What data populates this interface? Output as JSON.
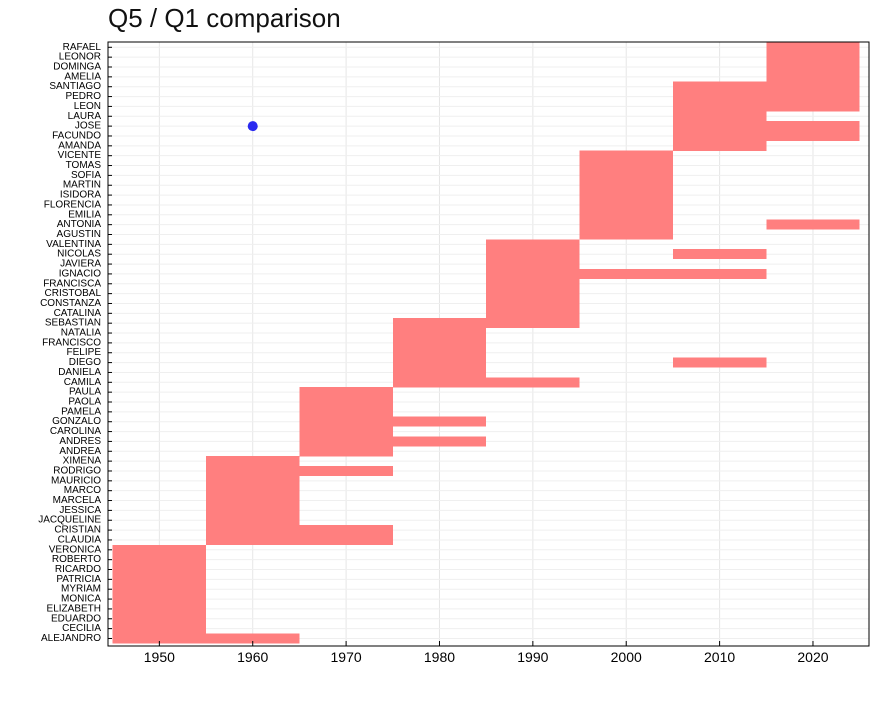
{
  "chart_data": {
    "type": "bar",
    "subtype": "timeline-heatmap",
    "title": "Q5 / Q1 comparison",
    "xlabel": "",
    "ylabel": "",
    "xlim": [
      1944.5,
      2026
    ],
    "xticks": [
      1950,
      1960,
      1970,
      1980,
      1990,
      2000,
      2010,
      2020
    ],
    "grid": true,
    "bar_color": "#ff7f7f",
    "point_color": "#2a2af0",
    "categories": [
      "ALEJANDRO",
      "CECILIA",
      "EDUARDO",
      "ELIZABETH",
      "MONICA",
      "MYRIAM",
      "PATRICIA",
      "RICARDO",
      "ROBERTO",
      "VERONICA",
      "CLAUDIA",
      "CRISTIAN",
      "JACQUELINE",
      "JESSICA",
      "MARCELA",
      "MARCO",
      "MAURICIO",
      "RODRIGO",
      "XIMENA",
      "ANDREA",
      "ANDRES",
      "CAROLINA",
      "GONZALO",
      "PAMELA",
      "PAOLA",
      "PAULA",
      "CAMILA",
      "DANIELA",
      "DIEGO",
      "FELIPE",
      "FRANCISCO",
      "NATALIA",
      "SEBASTIAN",
      "CATALINA",
      "CONSTANZA",
      "CRISTOBAL",
      "FRANCISCA",
      "IGNACIO",
      "JAVIERA",
      "NICOLAS",
      "VALENTINA",
      "AGUSTIN",
      "ANTONIA",
      "EMILIA",
      "FLORENCIA",
      "ISIDORA",
      "MARTIN",
      "SOFIA",
      "TOMAS",
      "VICENTE",
      "AMANDA",
      "FACUNDO",
      "JOSE",
      "LAURA",
      "LEON",
      "PEDRO",
      "SANTIAGO",
      "AMELIA",
      "DOMINGA",
      "LEONOR",
      "RAFAEL"
    ],
    "bars": [
      {
        "name": "ALEJANDRO",
        "ranges": [
          [
            1945,
            1965
          ]
        ]
      },
      {
        "name": "CECILIA",
        "ranges": [
          [
            1945,
            1955
          ]
        ]
      },
      {
        "name": "EDUARDO",
        "ranges": [
          [
            1945,
            1955
          ]
        ]
      },
      {
        "name": "ELIZABETH",
        "ranges": [
          [
            1945,
            1955
          ]
        ]
      },
      {
        "name": "MONICA",
        "ranges": [
          [
            1945,
            1955
          ]
        ]
      },
      {
        "name": "MYRIAM",
        "ranges": [
          [
            1945,
            1955
          ]
        ]
      },
      {
        "name": "PATRICIA",
        "ranges": [
          [
            1945,
            1955
          ]
        ]
      },
      {
        "name": "RICARDO",
        "ranges": [
          [
            1945,
            1955
          ]
        ]
      },
      {
        "name": "ROBERTO",
        "ranges": [
          [
            1945,
            1955
          ]
        ]
      },
      {
        "name": "VERONICA",
        "ranges": [
          [
            1945,
            1955
          ]
        ]
      },
      {
        "name": "CLAUDIA",
        "ranges": [
          [
            1955,
            1975
          ]
        ]
      },
      {
        "name": "CRISTIAN",
        "ranges": [
          [
            1955,
            1975
          ]
        ]
      },
      {
        "name": "JACQUELINE",
        "ranges": [
          [
            1955,
            1965
          ]
        ]
      },
      {
        "name": "JESSICA",
        "ranges": [
          [
            1955,
            1965
          ]
        ]
      },
      {
        "name": "MARCELA",
        "ranges": [
          [
            1955,
            1965
          ]
        ]
      },
      {
        "name": "MARCO",
        "ranges": [
          [
            1955,
            1965
          ]
        ]
      },
      {
        "name": "MAURICIO",
        "ranges": [
          [
            1955,
            1965
          ]
        ]
      },
      {
        "name": "RODRIGO",
        "ranges": [
          [
            1955,
            1975
          ]
        ]
      },
      {
        "name": "XIMENA",
        "ranges": [
          [
            1955,
            1965
          ]
        ]
      },
      {
        "name": "ANDREA",
        "ranges": [
          [
            1965,
            1975
          ]
        ]
      },
      {
        "name": "ANDRES",
        "ranges": [
          [
            1965,
            1985
          ]
        ]
      },
      {
        "name": "CAROLINA",
        "ranges": [
          [
            1965,
            1975
          ]
        ]
      },
      {
        "name": "GONZALO",
        "ranges": [
          [
            1965,
            1985
          ]
        ]
      },
      {
        "name": "PAMELA",
        "ranges": [
          [
            1965,
            1975
          ]
        ]
      },
      {
        "name": "PAOLA",
        "ranges": [
          [
            1965,
            1975
          ]
        ]
      },
      {
        "name": "PAULA",
        "ranges": [
          [
            1965,
            1975
          ]
        ]
      },
      {
        "name": "CAMILA",
        "ranges": [
          [
            1975,
            1995
          ]
        ]
      },
      {
        "name": "DANIELA",
        "ranges": [
          [
            1975,
            1985
          ]
        ]
      },
      {
        "name": "DIEGO",
        "ranges": [
          [
            1975,
            1985
          ],
          [
            2005,
            2015
          ]
        ]
      },
      {
        "name": "FELIPE",
        "ranges": [
          [
            1975,
            1985
          ]
        ]
      },
      {
        "name": "FRANCISCO",
        "ranges": [
          [
            1975,
            1985
          ]
        ]
      },
      {
        "name": "NATALIA",
        "ranges": [
          [
            1975,
            1985
          ]
        ]
      },
      {
        "name": "SEBASTIAN",
        "ranges": [
          [
            1975,
            1995
          ]
        ]
      },
      {
        "name": "CATALINA",
        "ranges": [
          [
            1985,
            1995
          ]
        ]
      },
      {
        "name": "CONSTANZA",
        "ranges": [
          [
            1985,
            1995
          ]
        ]
      },
      {
        "name": "CRISTOBAL",
        "ranges": [
          [
            1985,
            1995
          ]
        ]
      },
      {
        "name": "FRANCISCA",
        "ranges": [
          [
            1985,
            1995
          ]
        ]
      },
      {
        "name": "IGNACIO",
        "ranges": [
          [
            1985,
            2015
          ]
        ]
      },
      {
        "name": "JAVIERA",
        "ranges": [
          [
            1985,
            1995
          ]
        ]
      },
      {
        "name": "NICOLAS",
        "ranges": [
          [
            1985,
            1995
          ],
          [
            2005,
            2015
          ]
        ]
      },
      {
        "name": "VALENTINA",
        "ranges": [
          [
            1985,
            1995
          ]
        ]
      },
      {
        "name": "AGUSTIN",
        "ranges": [
          [
            1995,
            2005
          ]
        ]
      },
      {
        "name": "ANTONIA",
        "ranges": [
          [
            1995,
            2005
          ],
          [
            2015,
            2025
          ]
        ]
      },
      {
        "name": "EMILIA",
        "ranges": [
          [
            1995,
            2005
          ]
        ]
      },
      {
        "name": "FLORENCIA",
        "ranges": [
          [
            1995,
            2005
          ]
        ]
      },
      {
        "name": "ISIDORA",
        "ranges": [
          [
            1995,
            2005
          ]
        ]
      },
      {
        "name": "MARTIN",
        "ranges": [
          [
            1995,
            2005
          ]
        ]
      },
      {
        "name": "SOFIA",
        "ranges": [
          [
            1995,
            2005
          ]
        ]
      },
      {
        "name": "TOMAS",
        "ranges": [
          [
            1995,
            2005
          ]
        ]
      },
      {
        "name": "VICENTE",
        "ranges": [
          [
            1995,
            2005
          ]
        ]
      },
      {
        "name": "AMANDA",
        "ranges": [
          [
            2005,
            2015
          ]
        ]
      },
      {
        "name": "FACUNDO",
        "ranges": [
          [
            2005,
            2025
          ]
        ]
      },
      {
        "name": "JOSE",
        "ranges": [
          [
            2005,
            2025
          ]
        ]
      },
      {
        "name": "LAURA",
        "ranges": [
          [
            2005,
            2015
          ]
        ]
      },
      {
        "name": "LEON",
        "ranges": [
          [
            2005,
            2025
          ]
        ]
      },
      {
        "name": "PEDRO",
        "ranges": [
          [
            2005,
            2025
          ]
        ]
      },
      {
        "name": "SANTIAGO",
        "ranges": [
          [
            2005,
            2025
          ]
        ]
      },
      {
        "name": "AMELIA",
        "ranges": [
          [
            2015,
            2025
          ]
        ]
      },
      {
        "name": "DOMINGA",
        "ranges": [
          [
            2015,
            2025
          ]
        ]
      },
      {
        "name": "LEONOR",
        "ranges": [
          [
            2015,
            2025
          ]
        ]
      },
      {
        "name": "RAFAEL",
        "ranges": [
          [
            2015,
            2025
          ]
        ]
      }
    ],
    "points": [
      {
        "name": "JOSE",
        "x": 1960
      }
    ]
  }
}
